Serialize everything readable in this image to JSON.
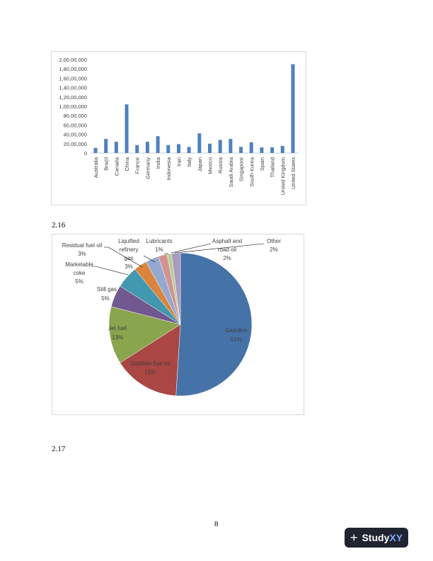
{
  "chart_data": [
    {
      "type": "bar",
      "title": "",
      "xlabel": "",
      "ylabel": "",
      "ylim": [
        0,
        20000000
      ],
      "grid": false,
      "legend": "none",
      "color": "#4f81bd",
      "y_tick_labels": [
        "0",
        "20,00,000",
        "40,00,000",
        "60,00,000",
        "80,00,000",
        "1,00,00,000",
        "1,20,00,000",
        "1,40,00,000",
        "1,60,00,000",
        "1,80,00,000",
        "2,00,00,000"
      ],
      "categories": [
        "Australia",
        "Brazil",
        "Canada",
        "China",
        "France",
        "Germany",
        "India",
        "Indonesia",
        "Iran",
        "Italy",
        "Japan",
        "Mexico",
        "Russia",
        "Saudi Arabia",
        "Singapore",
        "South Korea",
        "Spain",
        "Thailand",
        "United Kingdom",
        "United States"
      ],
      "values": [
        1100000,
        3000000,
        2400000,
        10400000,
        1700000,
        2400000,
        3600000,
        1700000,
        1900000,
        1300000,
        4200000,
        2000000,
        2800000,
        3000000,
        1300000,
        2300000,
        1200000,
        1200000,
        1500000,
        19000000
      ]
    },
    {
      "type": "pie",
      "title": "",
      "legend": "none",
      "slices": [
        {
          "label": "Gasoline",
          "value": 51,
          "pct": "51%",
          "color": "#4572a7"
        },
        {
          "label": "Distillate  fuel oil",
          "value": 15,
          "pct": "15%",
          "color": "#aa4643"
        },
        {
          "label": "Jet fuel",
          "value": 13,
          "pct": "13%",
          "color": "#89a54e"
        },
        {
          "label": "Still gas",
          "value": 5,
          "pct": "5%",
          "color": "#71588f"
        },
        {
          "label": "Marketable coke",
          "value": 5,
          "pct": "5%",
          "color": "#4198af"
        },
        {
          "label": "Residual fuel oil",
          "value": 3,
          "pct": "3%",
          "color": "#db843d"
        },
        {
          "label": "Liquified refinery gas",
          "value": 3,
          "pct": "3%",
          "color": "#93a9cf"
        },
        {
          "label": "Asphalt and road oil",
          "value": 2,
          "pct": "2%",
          "color": "#d19392"
        },
        {
          "label": "Lubricants",
          "value": 1,
          "pct": "1%",
          "color": "#b9cd96"
        },
        {
          "label": "Other",
          "value": 2,
          "pct": "2%",
          "color": "#a99bbd"
        }
      ]
    }
  ],
  "document": {
    "section_216": "2.16",
    "section_217": "2.17",
    "page_number": "8"
  },
  "logo": {
    "text_a": "Study",
    "text_b": "XY"
  }
}
